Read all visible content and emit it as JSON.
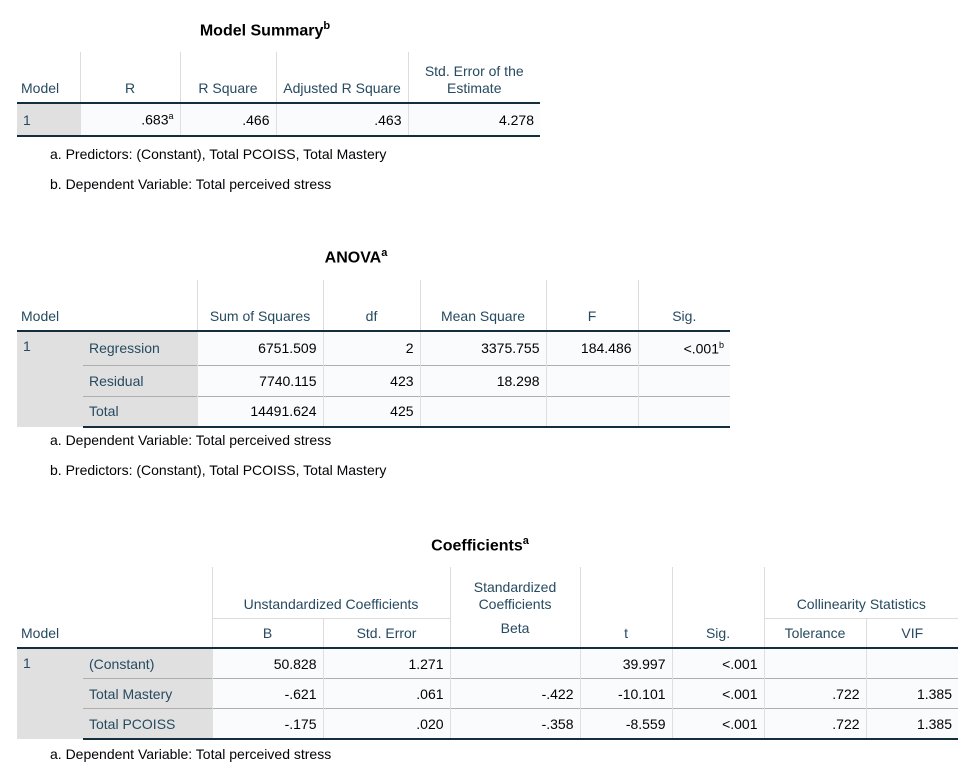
{
  "model_summary": {
    "title": "Model Summary",
    "title_sup": "b",
    "headers": [
      "Model",
      "R",
      "R Square",
      "Adjusted R Square",
      "Std. Error of the Estimate"
    ],
    "row": {
      "model": "1",
      "r": ".683",
      "r_sup": "a",
      "r_square": ".466",
      "adj_r_square": ".463",
      "std_error": "4.278"
    },
    "footnotes": [
      "a. Predictors: (Constant), Total PCOISS, Total Mastery",
      "b. Dependent Variable: Total perceived stress"
    ]
  },
  "anova": {
    "title": "ANOVA",
    "title_sup": "a",
    "headers": [
      "Model",
      "Sum of Squares",
      "df",
      "Mean Square",
      "F",
      "Sig."
    ],
    "model": "1",
    "rows": [
      {
        "label": "Regression",
        "ss": "6751.509",
        "df": "2",
        "ms": "3375.755",
        "f": "184.486",
        "sig": "<.001",
        "sig_sup": "b"
      },
      {
        "label": "Residual",
        "ss": "7740.115",
        "df": "423",
        "ms": "18.298",
        "f": "",
        "sig": ""
      },
      {
        "label": "Total",
        "ss": "14491.624",
        "df": "425",
        "ms": "",
        "f": "",
        "sig": ""
      }
    ],
    "footnotes": [
      "a. Dependent Variable: Total perceived stress",
      "b. Predictors: (Constant), Total PCOISS, Total Mastery"
    ]
  },
  "coefficients": {
    "title": "Coefficients",
    "title_sup": "a",
    "group_headers": [
      "Unstandardized Coefficients",
      "Standardized Coefficients",
      "Collinearity Statistics"
    ],
    "headers": [
      "Model",
      "B",
      "Std. Error",
      "Beta",
      "t",
      "Sig.",
      "Tolerance",
      "VIF"
    ],
    "model": "1",
    "rows": [
      {
        "label": "(Constant)",
        "b": "50.828",
        "se": "1.271",
        "beta": "",
        "t": "39.997",
        "sig": "<.001",
        "tol": "",
        "vif": ""
      },
      {
        "label": "Total Mastery",
        "b": "-.621",
        "se": ".061",
        "beta": "-.422",
        "t": "-10.101",
        "sig": "<.001",
        "tol": ".722",
        "vif": "1.385"
      },
      {
        "label": "Total PCOISS",
        "b": "-.175",
        "se": ".020",
        "beta": "-.358",
        "t": "-8.559",
        "sig": "<.001",
        "tol": ".722",
        "vif": "1.385"
      }
    ],
    "footnotes": [
      "a. Dependent Variable: Total perceived stress"
    ]
  }
}
